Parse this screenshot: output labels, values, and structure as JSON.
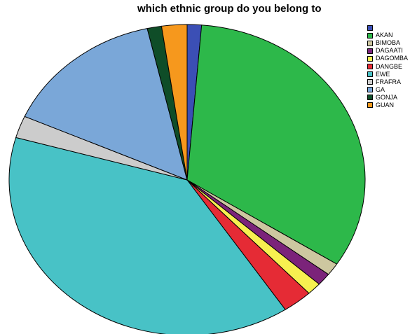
{
  "chart_data": {
    "type": "pie",
    "title": "which ethnic group do you belong to",
    "legend_position": "right",
    "start_angle": "12 o'clock",
    "direction": "clockwise",
    "slices": [
      {
        "label": "",
        "value": 1.3,
        "color": "#3b4fb5"
      },
      {
        "label": "AKAN",
        "value": 32.8,
        "color": "#2db84a"
      },
      {
        "label": "BIMOBA",
        "value": 1.3,
        "color": "#cdc7a0"
      },
      {
        "label": "DAGAATI",
        "value": 1.3,
        "color": "#7b237a"
      },
      {
        "label": "DAGOMBA",
        "value": 1.3,
        "color": "#f7f050"
      },
      {
        "label": "DANGBE",
        "value": 2.7,
        "color": "#e52b35"
      },
      {
        "label": "EWE",
        "value": 38.7,
        "color": "#48c2c6"
      },
      {
        "label": "FRAFRA",
        "value": 2.3,
        "color": "#cccccc"
      },
      {
        "label": "GA",
        "value": 14.7,
        "color": "#7aa7d8"
      },
      {
        "label": "GONJA",
        "value": 1.3,
        "color": "#0f4d28"
      },
      {
        "label": "GUAN",
        "value": 2.3,
        "color": "#f6981d"
      }
    ]
  }
}
